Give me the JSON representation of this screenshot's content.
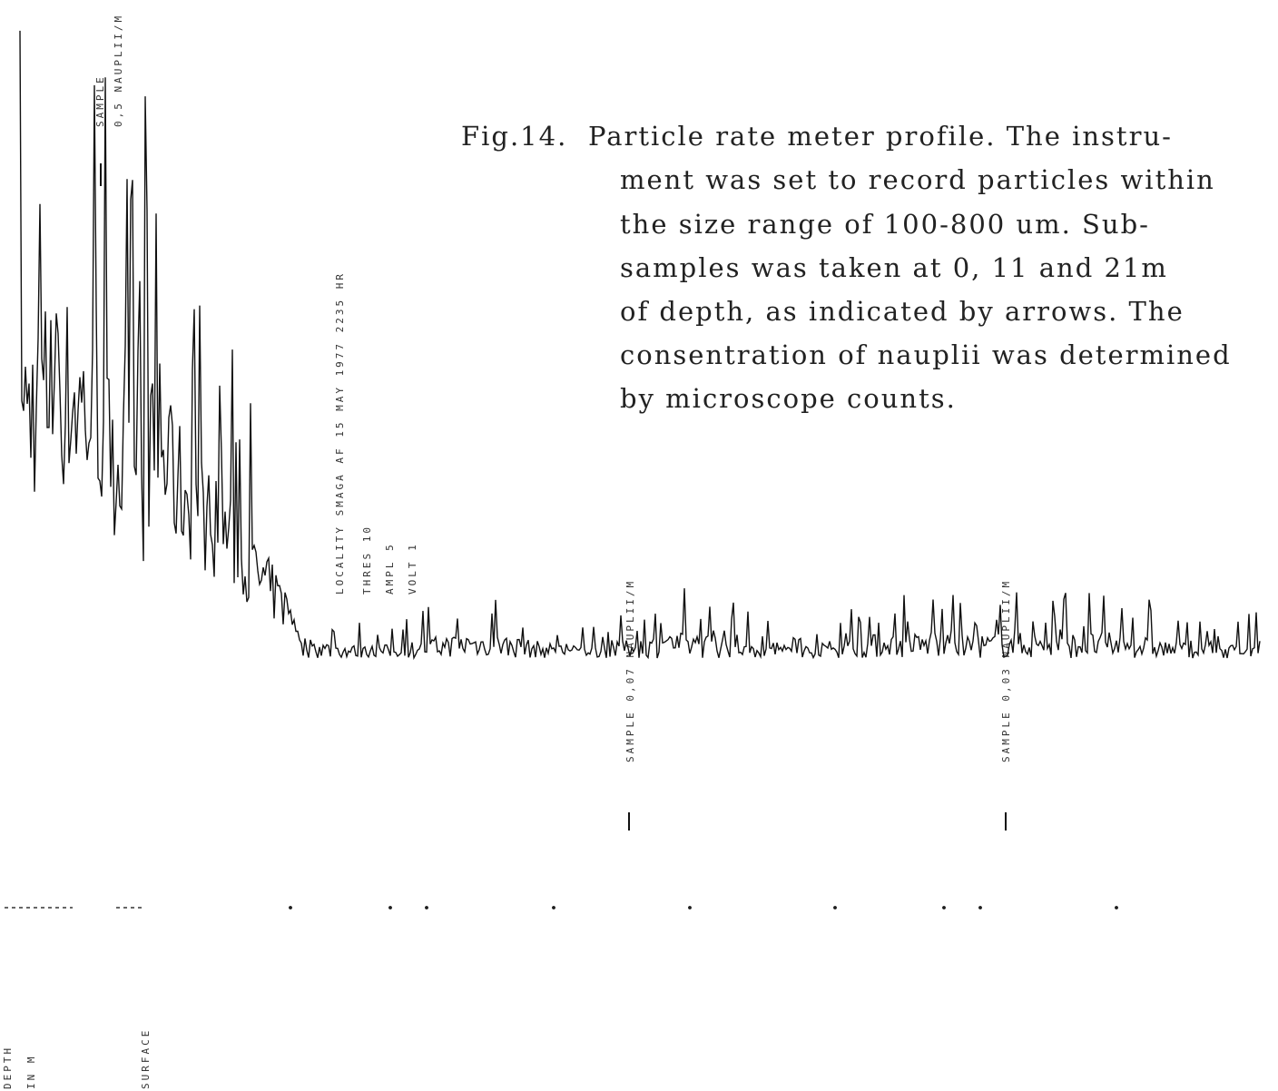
{
  "caption": {
    "label": "Fig.14.",
    "lines": [
      "Particle rate meter profile. The instru-",
      "ment was set to record particles within",
      "the size range of 100-800 um. Sub-",
      "samples was taken at 0, 11 and 21m",
      "of depth, as indicated by arrows. The",
      "consentration of nauplii was determined",
      "by microscope counts."
    ]
  },
  "labels": {
    "sample_top": "SAMPLE",
    "sample_top_conc": "0,5 NAUPLII/M",
    "locality": "LOCALITY SMAGA AF 15 MAY 1977 2235 HR",
    "thres": "THRES 10",
    "ampl": "AMPL 5",
    "volt": "VOLT 1",
    "sample_mid": "SAMPLE 0,07 NAUPLII/M",
    "sample_right": "SAMPLE 0,03 NAUPLII/M",
    "depth": "DEPTH",
    "in_m": "IN M",
    "surface": "SURFACE"
  }
}
